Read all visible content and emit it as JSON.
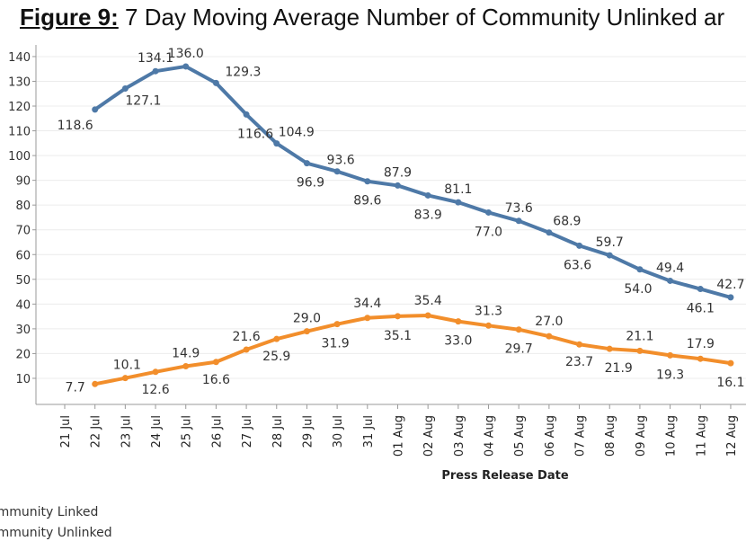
{
  "title": {
    "figure_label": "Figure 9:",
    "text": " 7 Day Moving Average Number of Community Unlinked ar"
  },
  "chart_data": {
    "type": "line",
    "title": "Figure 9: 7 Day Moving Average Number of Community Unlinked ar",
    "xlabel": "Press Release Date",
    "ylabel": "",
    "ylim": [
      0,
      145
    ],
    "yticks": [
      10,
      20,
      30,
      40,
      50,
      60,
      70,
      80,
      90,
      100,
      110,
      120,
      130,
      140
    ],
    "grid": true,
    "legend_position": "bottom-left",
    "categories": [
      "21 Jul",
      "22 Jul",
      "23 Jul",
      "24 Jul",
      "25 Jul",
      "26 Jul",
      "27 Jul",
      "28 Jul",
      "29 Jul",
      "30 Jul",
      "31 Jul",
      "01 Aug",
      "02 Aug",
      "03 Aug",
      "04 Aug",
      "05 Aug",
      "06 Aug",
      "07 Aug",
      "08 Aug",
      "09 Aug",
      "10 Aug",
      "11 Aug",
      "12 Aug"
    ],
    "series": [
      {
        "name": "ommunity Linked",
        "color": "#4e79a7",
        "values": [
          null,
          118.6,
          127.1,
          134.1,
          136.0,
          129.3,
          116.6,
          104.9,
          96.9,
          93.6,
          89.6,
          87.9,
          83.9,
          81.1,
          77.0,
          73.6,
          68.9,
          63.6,
          59.7,
          54.0,
          49.4,
          46.1,
          42.7
        ]
      },
      {
        "name": "ommunity Unlinked",
        "color": "#f28e2b",
        "values": [
          null,
          7.7,
          10.1,
          12.6,
          14.9,
          16.6,
          21.6,
          25.9,
          29.0,
          31.9,
          34.4,
          35.1,
          35.4,
          33.0,
          31.3,
          29.7,
          27.0,
          23.7,
          21.9,
          21.1,
          19.3,
          17.9,
          16.1
        ]
      }
    ]
  }
}
